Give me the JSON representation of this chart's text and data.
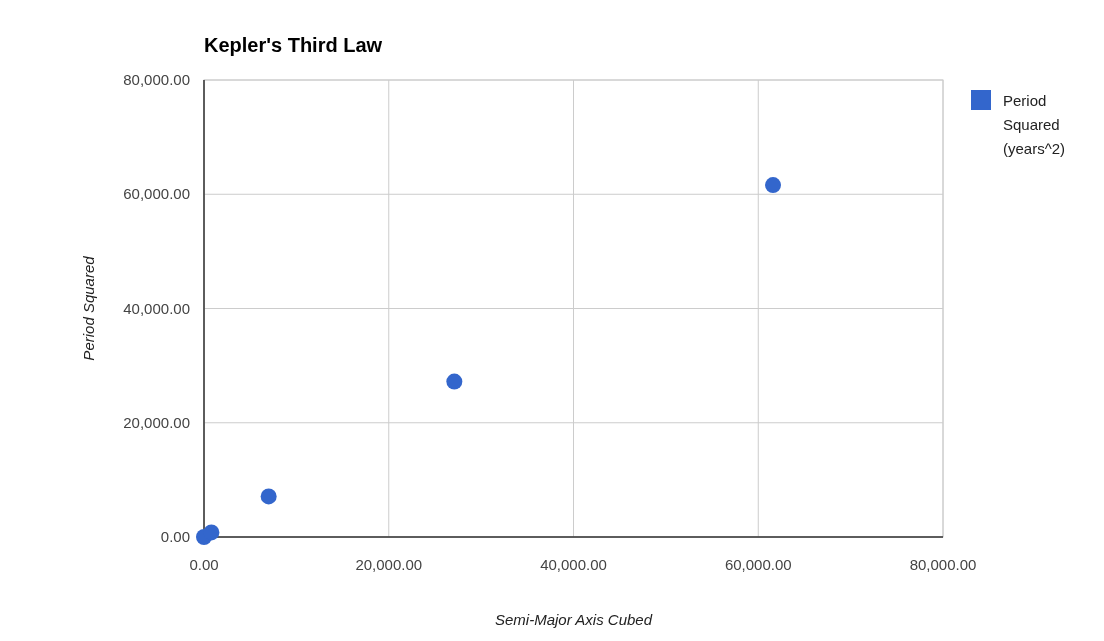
{
  "chart_data": {
    "type": "scatter",
    "title": "Kepler's Third Law",
    "xlabel": "Semi-Major Axis Cubed",
    "ylabel": "Period Squared",
    "x": [
      0,
      800,
      7000,
      27100,
      61600
    ],
    "series": [
      {
        "name": "Period Squared (years^2)",
        "color": "#3366cc",
        "values": [
          0,
          800,
          7100,
          27200,
          61600
        ]
      }
    ],
    "xlim": [
      0,
      80000
    ],
    "ylim": [
      0,
      80000
    ],
    "xticks": [
      {
        "value": 0,
        "label": "0.00"
      },
      {
        "value": 20000,
        "label": "20,000.00"
      },
      {
        "value": 40000,
        "label": "40,000.00"
      },
      {
        "value": 60000,
        "label": "60,000.00"
      },
      {
        "value": 80000,
        "label": "80,000.00"
      }
    ],
    "yticks": [
      {
        "value": 0,
        "label": "0.00"
      },
      {
        "value": 20000,
        "label": "20,000.00"
      },
      {
        "value": 40000,
        "label": "40,000.00"
      },
      {
        "value": 60000,
        "label": "60,000.00"
      },
      {
        "value": 80000,
        "label": "80,000.00"
      }
    ],
    "grid": true,
    "legend": "right",
    "marker": "circle"
  }
}
